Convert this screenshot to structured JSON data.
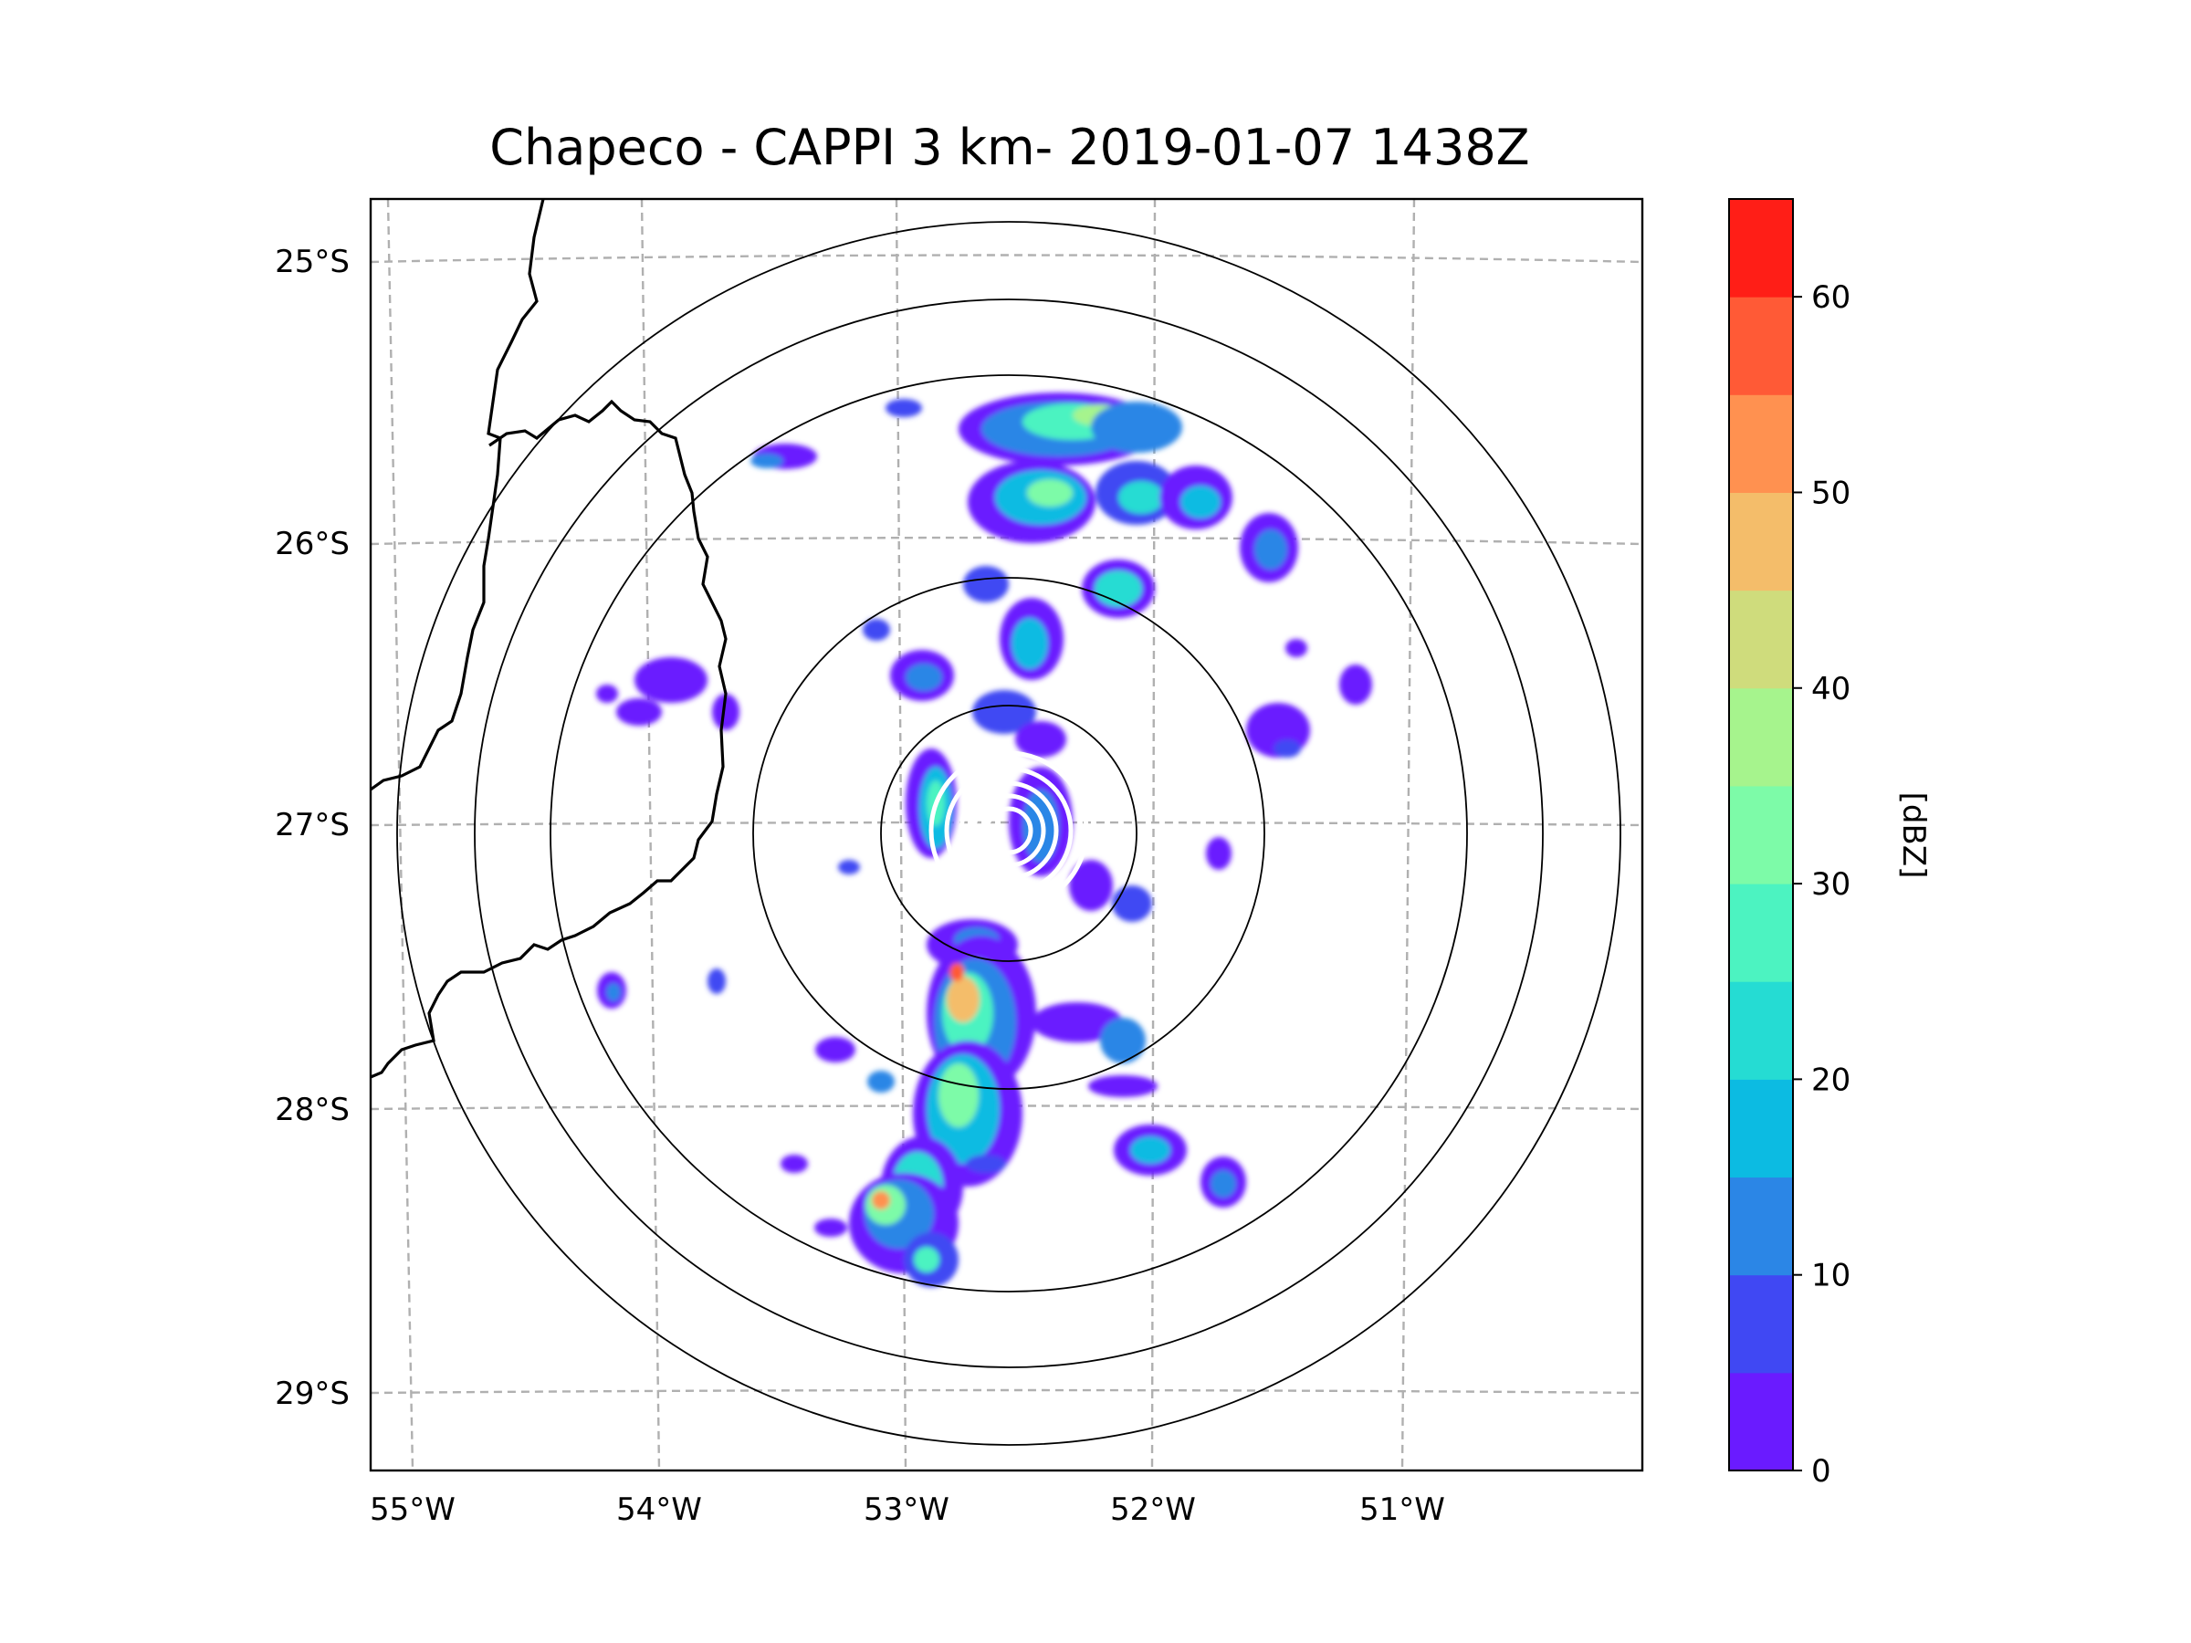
{
  "title": "Chapeco - CAPPI 3 km- 2019-01-07 1438Z",
  "map": {
    "lon_ticks": [
      "55°W",
      "54°W",
      "53°W",
      "52°W",
      "51°W"
    ],
    "lat_ticks": [
      "25°S",
      "26°S",
      "27°S",
      "28°S",
      "29°S"
    ],
    "gridlines": "dashed",
    "range_rings": 5,
    "features": [
      "coastline-borders",
      "radar-reflectivity-echoes"
    ]
  },
  "colorbar": {
    "label": "[dBZ]",
    "tick_labels": [
      "0",
      "10",
      "20",
      "30",
      "40",
      "50",
      "60"
    ],
    "tick_values": [
      0,
      10,
      20,
      30,
      40,
      50,
      60
    ],
    "range": [
      0,
      65
    ],
    "bins": [
      {
        "from": 0,
        "to": 5,
        "color": "#6a1bff"
      },
      {
        "from": 5,
        "to": 10,
        "color": "#4048f3"
      },
      {
        "from": 10,
        "to": 15,
        "color": "#2b86e6"
      },
      {
        "from": 15,
        "to": 20,
        "color": "#0cbbe2"
      },
      {
        "from": 20,
        "to": 25,
        "color": "#25dcd3"
      },
      {
        "from": 25,
        "to": 30,
        "color": "#4cf3c1"
      },
      {
        "from": 30,
        "to": 35,
        "color": "#7dfba8"
      },
      {
        "from": 35,
        "to": 40,
        "color": "#a6f48d"
      },
      {
        "from": 40,
        "to": 45,
        "color": "#cfdc7c"
      },
      {
        "from": 45,
        "to": 50,
        "color": "#f4bd6a"
      },
      {
        "from": 50,
        "to": 55,
        "color": "#ff9150"
      },
      {
        "from": 55,
        "to": 60,
        "color": "#ff5a36"
      },
      {
        "from": 60,
        "to": 65,
        "color": "#ff1e17"
      }
    ]
  }
}
